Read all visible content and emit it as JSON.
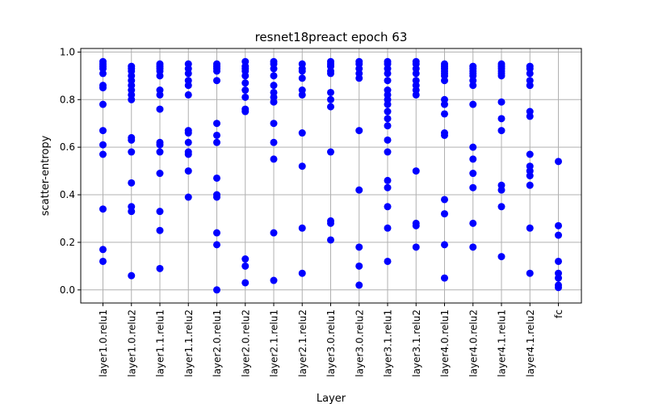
{
  "chart_data": {
    "type": "scatter",
    "title": "resnet18preact epoch 63",
    "xlabel": "Layer",
    "ylabel": "scatter-entropy",
    "ylim": [
      -0.055,
      1.015
    ],
    "yticks": [
      "0.0",
      "0.2",
      "0.4",
      "0.6",
      "0.8",
      "1.0"
    ],
    "grid": true,
    "point_color": "#0000ff",
    "categories": [
      "layer1.0.relu1",
      "layer1.0.relu2",
      "layer1.1.relu1",
      "layer1.1.relu2",
      "layer2.0.relu1",
      "layer2.0.relu2",
      "layer2.1.relu1",
      "layer2.1.relu2",
      "layer3.0.relu1",
      "layer3.0.relu2",
      "layer3.1.relu1",
      "layer3.1.relu2",
      "layer4.0.relu1",
      "layer4.0.relu2",
      "layer4.1.relu1",
      "layer4.1.relu2",
      "fc"
    ],
    "values": [
      [
        0.96,
        0.95,
        0.94,
        0.93,
        0.91,
        0.86,
        0.85,
        0.78,
        0.67,
        0.61,
        0.57,
        0.34,
        0.17,
        0.12
      ],
      [
        0.94,
        0.93,
        0.92,
        0.9,
        0.88,
        0.86,
        0.84,
        0.82,
        0.8,
        0.64,
        0.63,
        0.58,
        0.45,
        0.35,
        0.33,
        0.06
      ],
      [
        0.95,
        0.94,
        0.93,
        0.92,
        0.9,
        0.84,
        0.82,
        0.76,
        0.62,
        0.61,
        0.58,
        0.49,
        0.33,
        0.25,
        0.09
      ],
      [
        0.95,
        0.93,
        0.91,
        0.88,
        0.86,
        0.82,
        0.67,
        0.66,
        0.62,
        0.58,
        0.57,
        0.5,
        0.39
      ],
      [
        0.95,
        0.94,
        0.93,
        0.92,
        0.88,
        0.7,
        0.65,
        0.62,
        0.47,
        0.4,
        0.39,
        0.24,
        0.19,
        0.0
      ],
      [
        0.96,
        0.94,
        0.93,
        0.92,
        0.9,
        0.87,
        0.84,
        0.81,
        0.76,
        0.75,
        0.13,
        0.1,
        0.03
      ],
      [
        0.96,
        0.95,
        0.93,
        0.9,
        0.86,
        0.83,
        0.81,
        0.79,
        0.7,
        0.62,
        0.55,
        0.24,
        0.04
      ],
      [
        0.95,
        0.93,
        0.92,
        0.89,
        0.84,
        0.82,
        0.66,
        0.52,
        0.26,
        0.07
      ],
      [
        0.96,
        0.95,
        0.94,
        0.92,
        0.91,
        0.83,
        0.8,
        0.77,
        0.58,
        0.29,
        0.28,
        0.21
      ],
      [
        0.96,
        0.95,
        0.93,
        0.91,
        0.89,
        0.67,
        0.42,
        0.18,
        0.1,
        0.02
      ],
      [
        0.96,
        0.95,
        0.93,
        0.91,
        0.88,
        0.84,
        0.82,
        0.8,
        0.78,
        0.75,
        0.72,
        0.69,
        0.63,
        0.58,
        0.46,
        0.43,
        0.35,
        0.26,
        0.12
      ],
      [
        0.96,
        0.95,
        0.93,
        0.91,
        0.88,
        0.86,
        0.84,
        0.82,
        0.5,
        0.28,
        0.27,
        0.18
      ],
      [
        0.95,
        0.94,
        0.93,
        0.92,
        0.91,
        0.9,
        0.88,
        0.8,
        0.78,
        0.74,
        0.66,
        0.65,
        0.38,
        0.32,
        0.19,
        0.05
      ],
      [
        0.94,
        0.93,
        0.92,
        0.91,
        0.9,
        0.88,
        0.86,
        0.78,
        0.6,
        0.55,
        0.49,
        0.43,
        0.28,
        0.18
      ],
      [
        0.95,
        0.94,
        0.93,
        0.92,
        0.91,
        0.9,
        0.79,
        0.72,
        0.67,
        0.44,
        0.42,
        0.35,
        0.14
      ],
      [
        0.94,
        0.93,
        0.91,
        0.88,
        0.86,
        0.75,
        0.73,
        0.57,
        0.52,
        0.5,
        0.48,
        0.44,
        0.26,
        0.07
      ],
      [
        0.54,
        0.27,
        0.23,
        0.12,
        0.07,
        0.05,
        0.02,
        0.01
      ]
    ]
  }
}
